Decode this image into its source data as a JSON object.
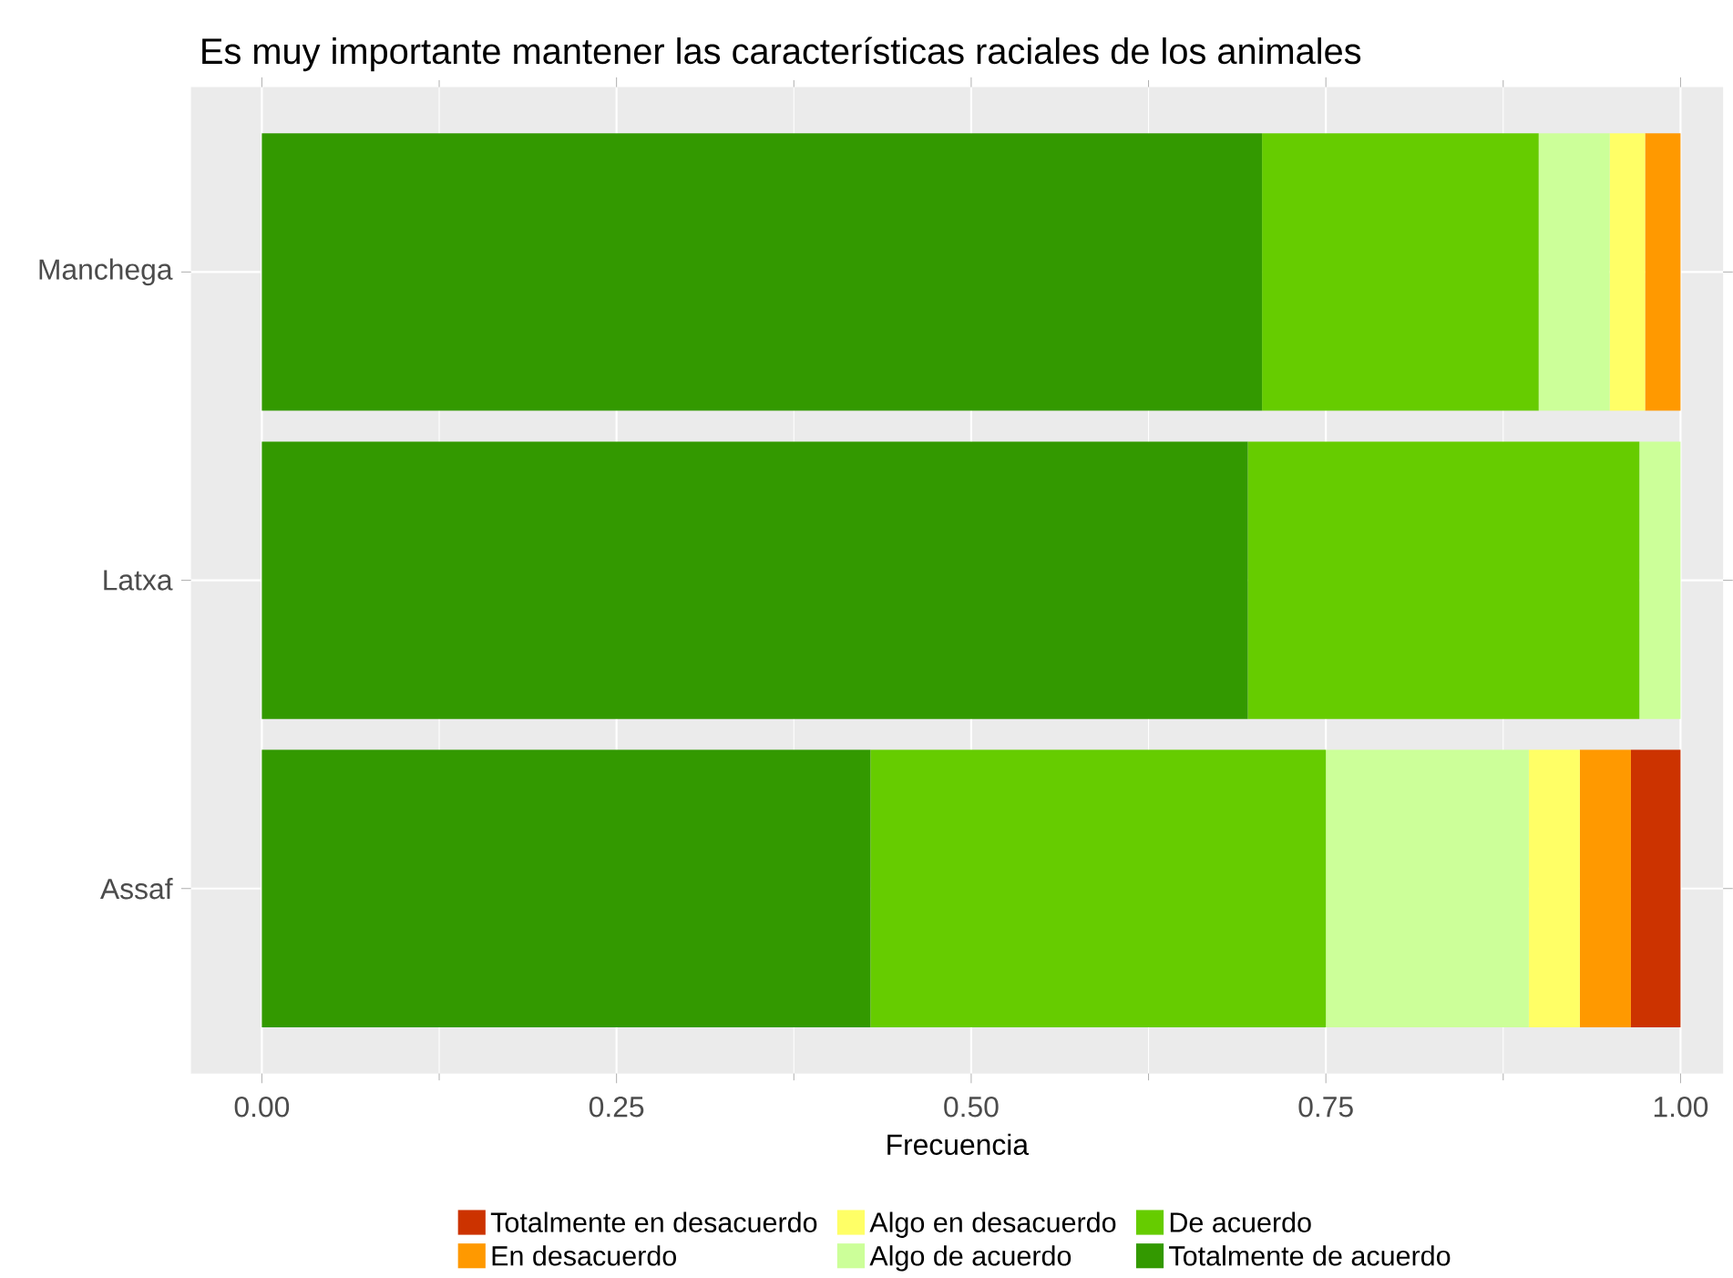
{
  "chart_data": {
    "type": "bar",
    "orientation": "horizontal",
    "stacked": true,
    "title": "Es muy importante mantener las características raciales de los animales",
    "xlabel": "Frecuencia",
    "categories": [
      "Manchega",
      "Latxa",
      "Assaf"
    ],
    "series": [
      {
        "name": "Totalmente de acuerdo",
        "color": "#339900",
        "values": [
          0.705,
          0.695,
          0.429
        ]
      },
      {
        "name": "De acuerdo",
        "color": "#66cc00",
        "values": [
          0.195,
          0.276,
          0.321
        ]
      },
      {
        "name": "Algo de acuerdo",
        "color": "#ccff99",
        "values": [
          0.05,
          0.029,
          0.143
        ]
      },
      {
        "name": "Algo en desacuerdo",
        "color": "#ffff66",
        "values": [
          0.025,
          0,
          0.036
        ]
      },
      {
        "name": "En desacuerdo",
        "color": "#ff9900",
        "values": [
          0.025,
          0,
          0.036
        ]
      },
      {
        "name": "Totalmente en desacuerdo",
        "color": "#cc3300",
        "values": [
          0,
          0,
          0.035
        ]
      }
    ],
    "xlim": [
      -0.05,
      1.03
    ],
    "xticks": [
      {
        "value": 0,
        "label": "0.00"
      },
      {
        "value": 0.25,
        "label": "0.25"
      },
      {
        "value": 0.5,
        "label": "0.50"
      },
      {
        "value": 0.75,
        "label": "0.75"
      },
      {
        "value": 1,
        "label": "1.00"
      }
    ],
    "grid": true,
    "legend": "bottom"
  }
}
